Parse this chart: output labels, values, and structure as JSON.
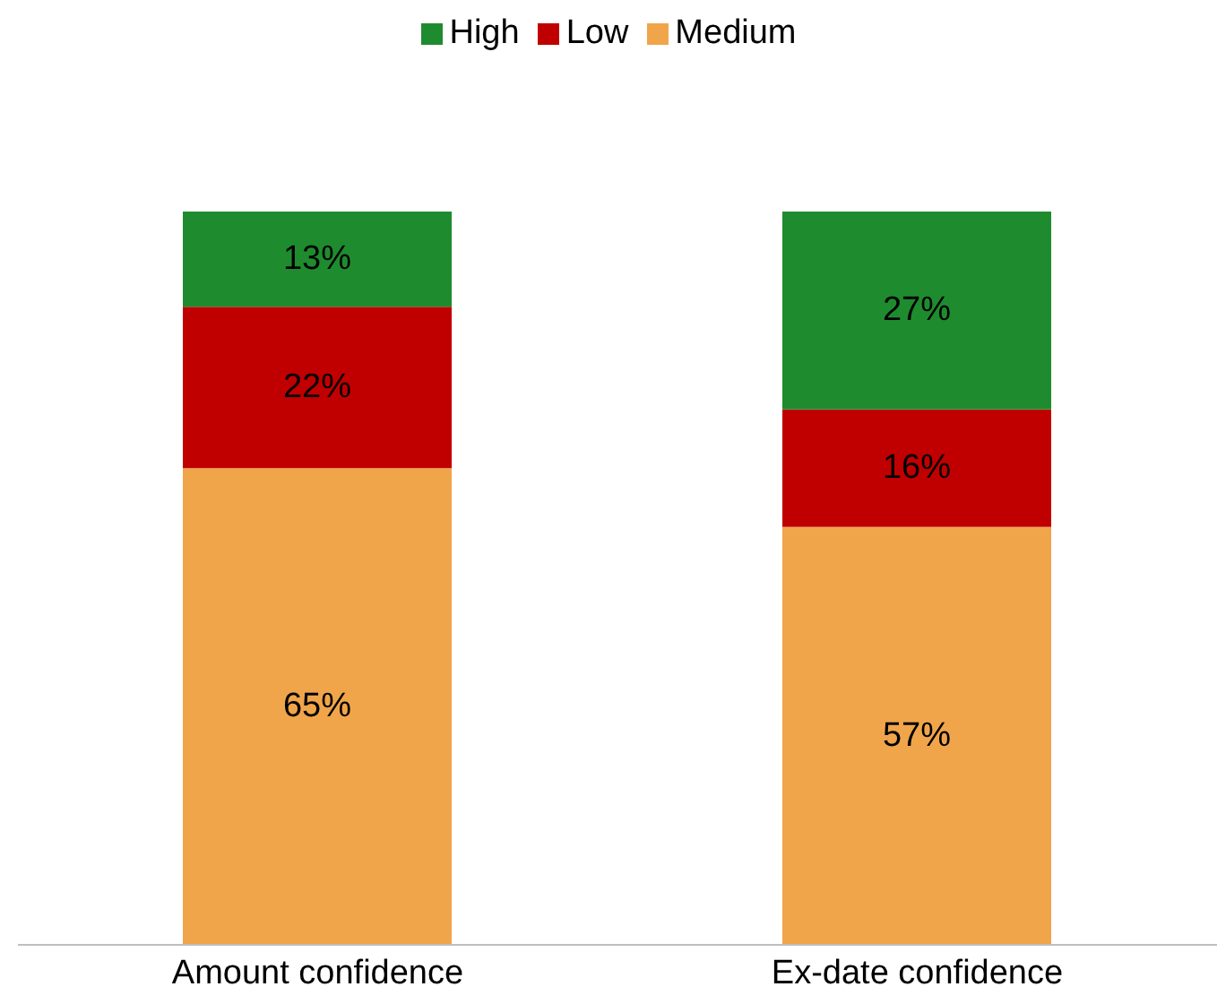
{
  "chart_data": {
    "type": "bar",
    "stacked": true,
    "categories": [
      "Amount confidence",
      "Ex-date confidence"
    ],
    "series": [
      {
        "name": "Medium",
        "color": "#f0a54a",
        "values": [
          65,
          57
        ],
        "value_labels": [
          "65%",
          "57%"
        ]
      },
      {
        "name": "Low",
        "color": "#c00000",
        "values": [
          22,
          16
        ],
        "value_labels": [
          "22%",
          "16%"
        ]
      },
      {
        "name": "High",
        "color": "#1e8c2e",
        "values": [
          13,
          27
        ],
        "value_labels": [
          "13%",
          "27%"
        ]
      }
    ],
    "legend": "top",
    "grid": false
  }
}
